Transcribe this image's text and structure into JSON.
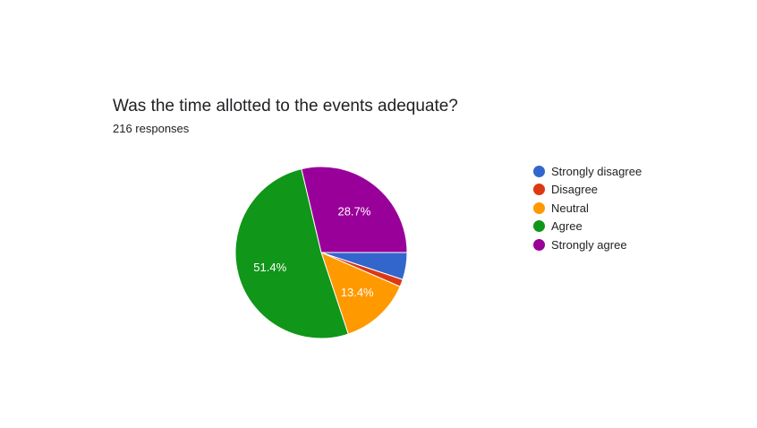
{
  "title": "Was the time allotted to the events adequate?",
  "subtitle": "216 responses",
  "chart_data": {
    "type": "pie",
    "title": "Was the time allotted to the events adequate?",
    "subtitle": "216 responses",
    "legend_position": "right",
    "slices": [
      {
        "label": "Strongly disagree",
        "value": 5.1,
        "display": "",
        "color": "#3366cc"
      },
      {
        "label": "Disagree",
        "value": 1.4,
        "display": "",
        "color": "#dc3912"
      },
      {
        "label": "Neutral",
        "value": 13.4,
        "display": "13.4%",
        "color": "#ff9900"
      },
      {
        "label": "Agree",
        "value": 51.4,
        "display": "51.4%",
        "color": "#109618"
      },
      {
        "label": "Strongly agree",
        "value": 28.7,
        "display": "28.7%",
        "color": "#990099"
      }
    ]
  }
}
